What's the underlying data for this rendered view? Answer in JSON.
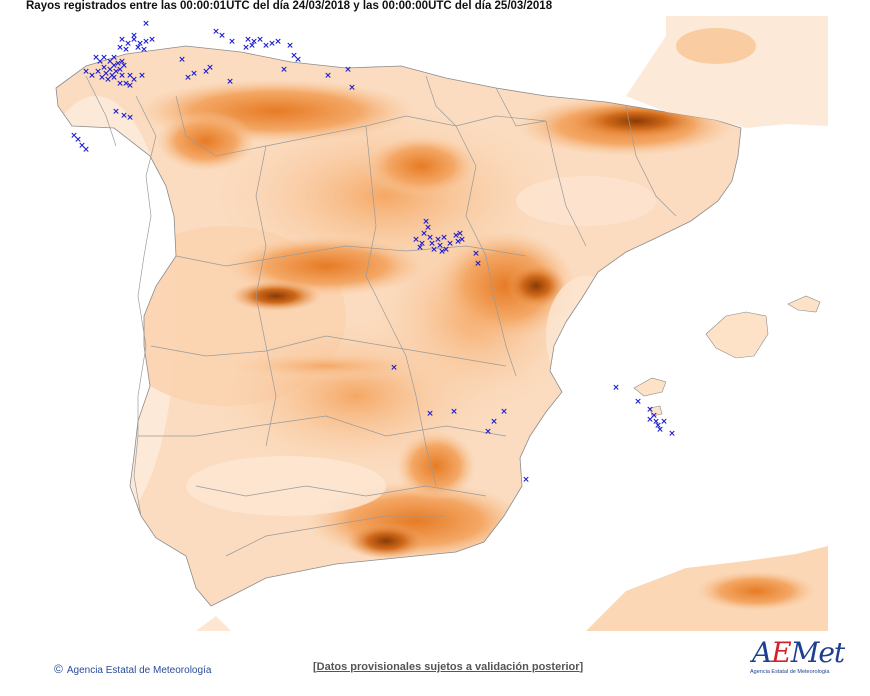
{
  "header": {
    "title": "Rayos registrados entre las 00:00:01UTC del día 24/03/2018 y las 00:00:00UTC del día 25/03/2018"
  },
  "footer": {
    "copyright_symbol": "©",
    "copyright_text": "Agencia Estatal de Meteorología",
    "disclaimer": "Datos provisionales sujetos a validación posterior"
  },
  "logo": {
    "brand_a": "A",
    "brand_e": "E",
    "brand_rest": "Met",
    "subtitle": "Agencia Estatal de Meteorología"
  },
  "map": {
    "colors": {
      "sea": "#ffffff",
      "land_low": "#fde6d2",
      "land_mid": "#f8b87e",
      "land_high": "#ec8a36",
      "land_peak": "#a04a0a",
      "border": "#9a9a9a",
      "lightning": "#1a1ad0"
    },
    "lightning_symbol": "×"
  }
}
